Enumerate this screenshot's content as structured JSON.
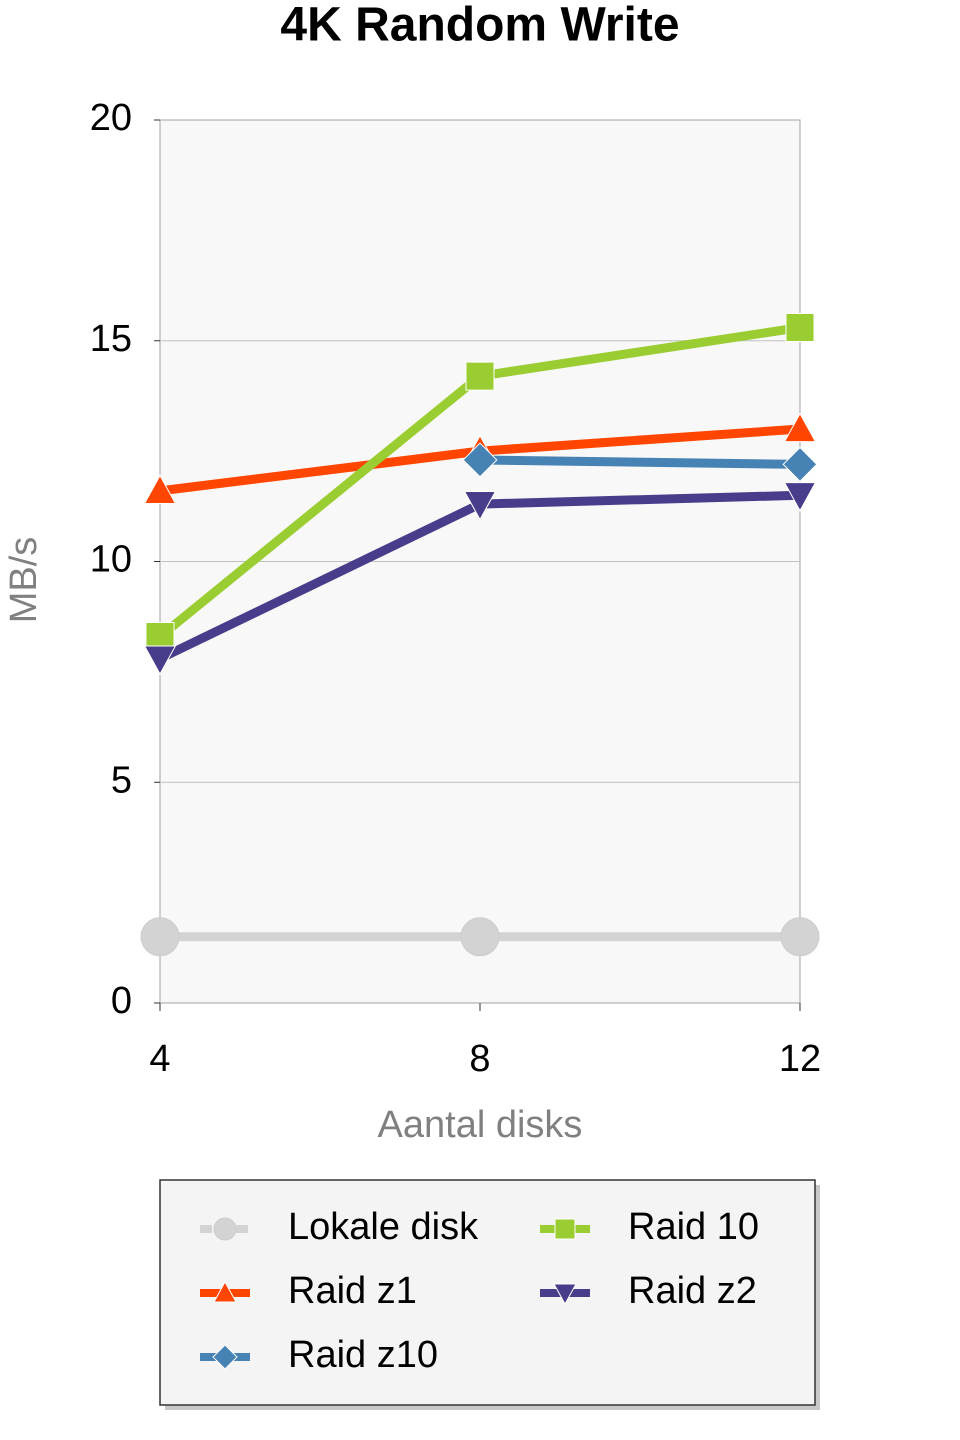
{
  "chart_data": {
    "type": "line",
    "title": "4K Random Write",
    "x_label": "Aantal disks",
    "y_label": "MB/s",
    "x": [
      4,
      8,
      12
    ],
    "xlim": [
      4,
      12
    ],
    "xticks": [
      4,
      8,
      12
    ],
    "ylim": [
      0,
      20
    ],
    "yticks": [
      0,
      5,
      10,
      15,
      20
    ],
    "grid": true,
    "series": [
      {
        "name": "Lokale disk",
        "color": "#d3d3d3",
        "marker": "circle",
        "values": [
          1.5,
          1.5,
          1.5
        ]
      },
      {
        "name": "Raid z1",
        "color": "#ff4500",
        "marker": "triangle",
        "values": [
          11.6,
          12.5,
          13.0
        ]
      },
      {
        "name": "Raid z10",
        "color": "#4682b4",
        "marker": "diamond",
        "values": [
          null,
          12.3,
          12.2
        ]
      },
      {
        "name": "Raid 10",
        "color": "#9acd32",
        "marker": "square",
        "values": [
          8.3,
          14.2,
          15.3
        ]
      },
      {
        "name": "Raid z2",
        "color": "#483d8b",
        "marker": "triangle-down",
        "values": [
          7.8,
          11.3,
          11.5
        ]
      }
    ]
  }
}
